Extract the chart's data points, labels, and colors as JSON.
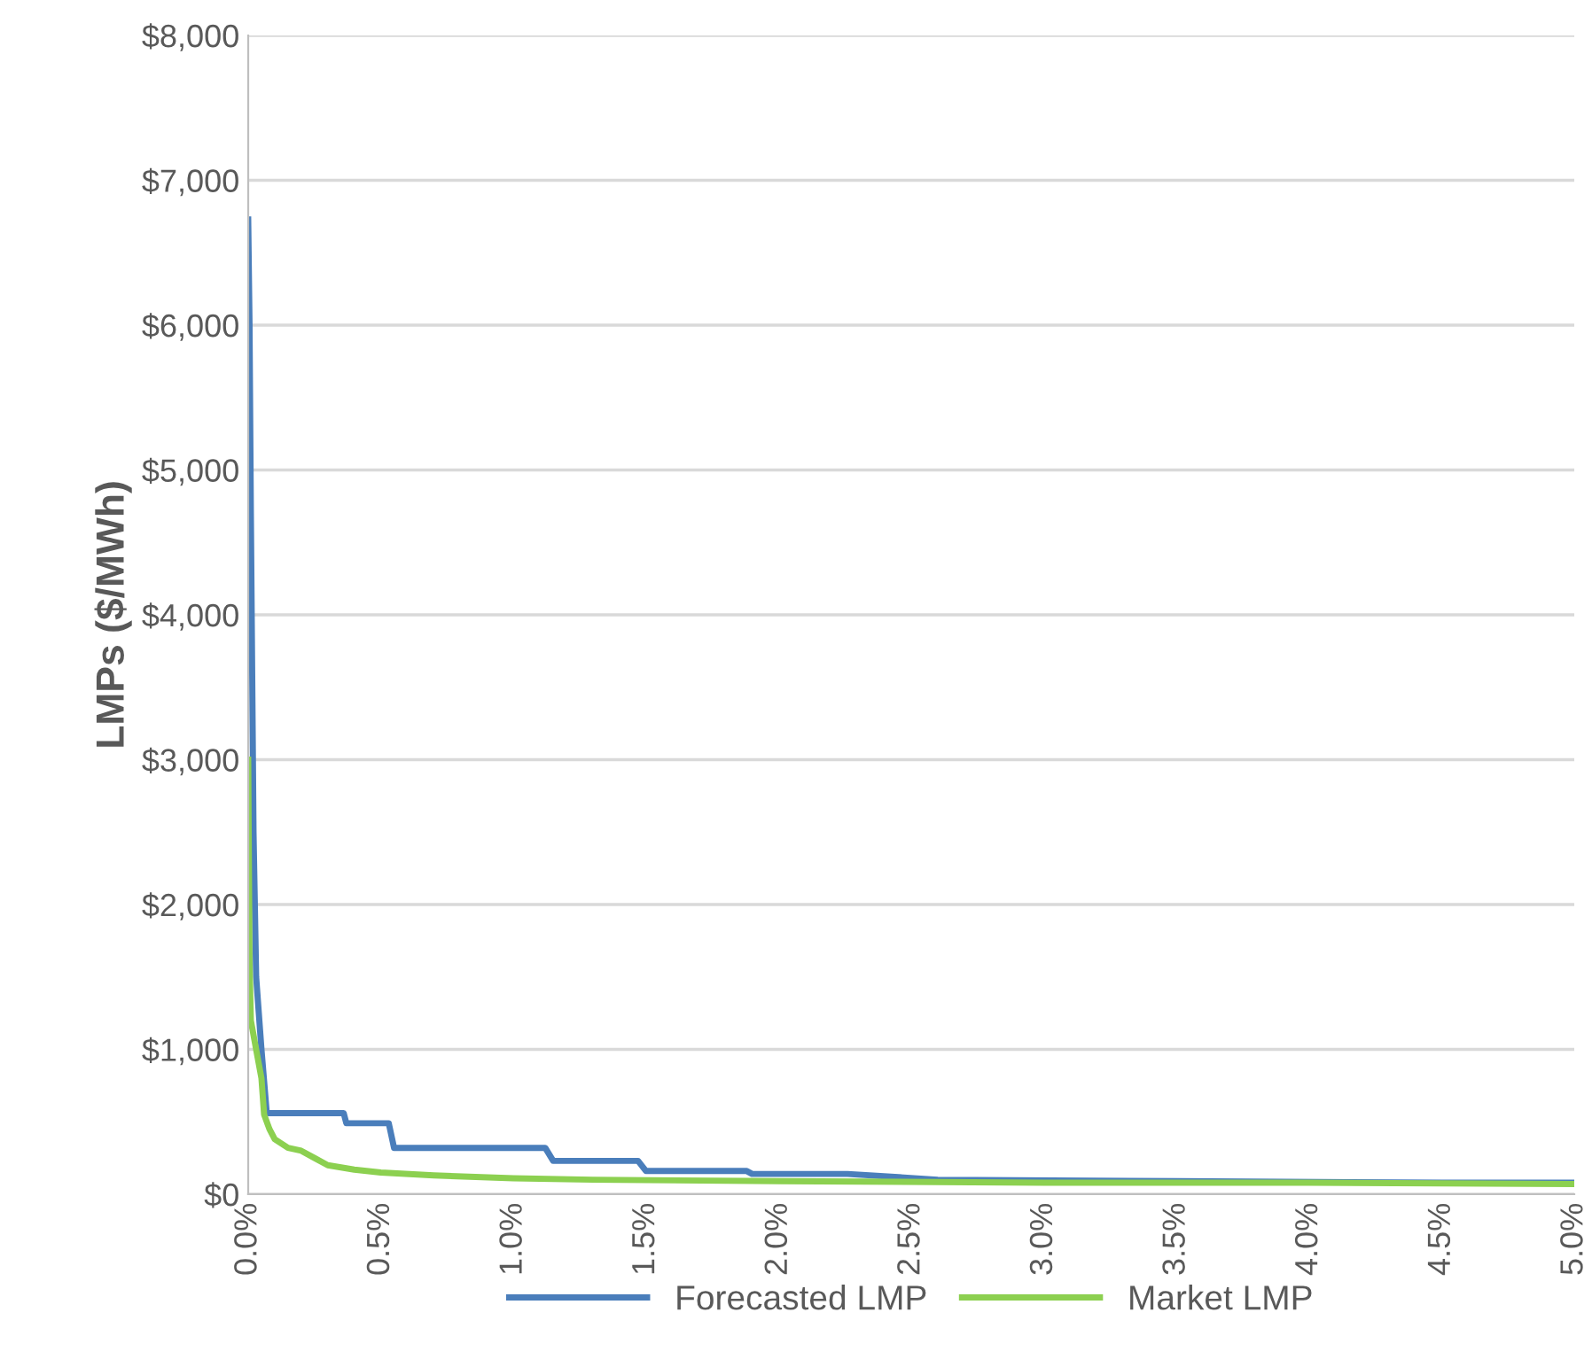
{
  "chart_data": {
    "type": "line",
    "ylabel": "LMPs ($/MWh)",
    "xlim": [
      0,
      5
    ],
    "ylim": [
      0,
      8000
    ],
    "xticks": [
      {
        "value": 0,
        "label": "0.0%"
      },
      {
        "value": 0.5,
        "label": "0.5%"
      },
      {
        "value": 1,
        "label": "1.0%"
      },
      {
        "value": 1.5,
        "label": "1.5%"
      },
      {
        "value": 2,
        "label": "2.0%"
      },
      {
        "value": 2.5,
        "label": "2.5%"
      },
      {
        "value": 3,
        "label": "3.0%"
      },
      {
        "value": 3.5,
        "label": "3.5%"
      },
      {
        "value": 4,
        "label": "4.0%"
      },
      {
        "value": 4.5,
        "label": "4.5%"
      },
      {
        "value": 5,
        "label": "5.0%"
      }
    ],
    "yticks": [
      {
        "value": 0,
        "label": "$0"
      },
      {
        "value": 1000,
        "label": "$1,000"
      },
      {
        "value": 2000,
        "label": "$2,000"
      },
      {
        "value": 3000,
        "label": "$3,000"
      },
      {
        "value": 4000,
        "label": "$4,000"
      },
      {
        "value": 5000,
        "label": "$5,000"
      },
      {
        "value": 6000,
        "label": "$6,000"
      },
      {
        "value": 7000,
        "label": "$7,000"
      },
      {
        "value": 8000,
        "label": "$8,000"
      }
    ],
    "grid": "y",
    "legend": "bottom",
    "marker": "none",
    "line_style": "solid",
    "series": [
      {
        "name": "Forecasted LMP",
        "color": "#4a7ebb",
        "x": [
          0,
          0.005,
          0.01,
          0.02,
          0.03,
          0.05,
          0.07,
          0.36,
          0.37,
          0.53,
          0.55,
          1.12,
          1.15,
          1.47,
          1.5,
          1.88,
          1.9,
          2.26,
          2.6,
          3.5,
          4.5,
          5
        ],
        "values": [
          6730,
          6000,
          4700,
          2500,
          1500,
          1000,
          560,
          560,
          490,
          490,
          320,
          320,
          230,
          230,
          160,
          160,
          140,
          140,
          100,
          90,
          80,
          80
        ]
      },
      {
        "name": "Market LMP",
        "color": "#8cd050",
        "x": [
          0,
          0.005,
          0.01,
          0.03,
          0.05,
          0.06,
          0.08,
          0.1,
          0.15,
          0.2,
          0.25,
          0.3,
          0.4,
          0.5,
          0.7,
          1,
          1.3,
          2,
          3,
          4,
          5
        ],
        "values": [
          3000,
          1600,
          1200,
          1000,
          800,
          550,
          450,
          380,
          320,
          300,
          250,
          200,
          170,
          150,
          130,
          110,
          100,
          90,
          80,
          80,
          70
        ]
      }
    ]
  }
}
